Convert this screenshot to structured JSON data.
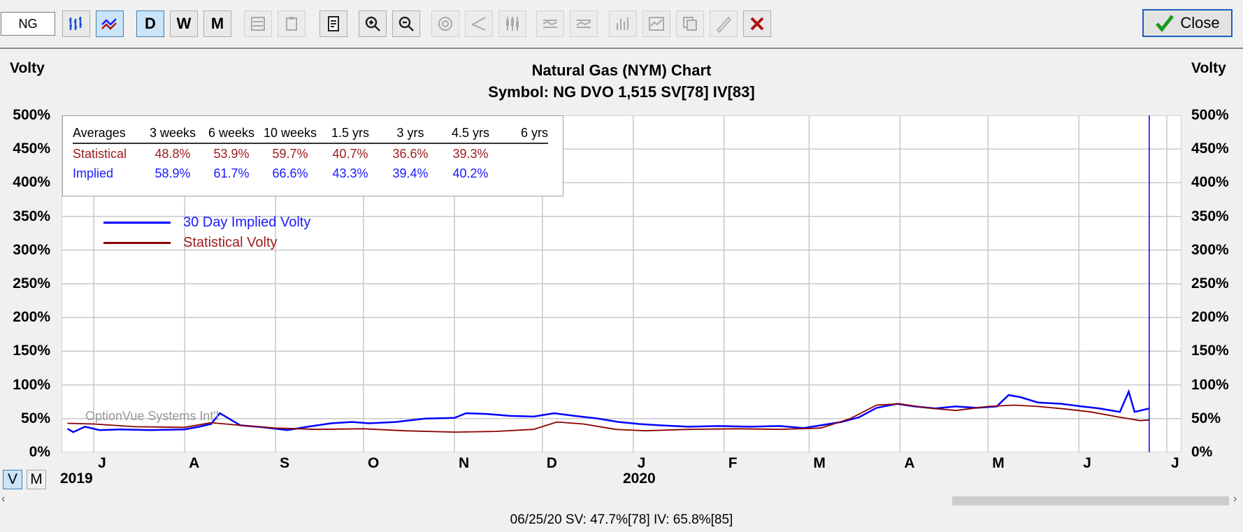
{
  "toolbar": {
    "symbol_value": "NG",
    "buttons": [
      {
        "name": "bar-chart-button",
        "label": "",
        "icon": "bar-chart-icon",
        "pressed": false,
        "disabled": false
      },
      {
        "name": "volatility-chart-button",
        "label": "",
        "icon": "volatility-chart-icon",
        "pressed": true,
        "disabled": false
      },
      {
        "name": "daily-button",
        "label": "D",
        "pressed": true,
        "disabled": false
      },
      {
        "name": "weekly-button",
        "label": "W",
        "pressed": false,
        "disabled": false
      },
      {
        "name": "monthly-button",
        "label": "M",
        "pressed": false,
        "disabled": false
      }
    ],
    "close_label": "Close"
  },
  "chart": {
    "title_line1": "Natural Gas (NYM) Chart",
    "title_line2": "Symbol: NG  DVO 1,515  SV[78]  IV[83]",
    "left_axis_title": "Volty",
    "right_axis_title": "Volty",
    "y_ticks": [
      "500%",
      "450%",
      "400%",
      "350%",
      "300%",
      "250%",
      "200%",
      "150%",
      "100%",
      "50%",
      "0%"
    ],
    "months": [
      "J",
      "A",
      "S",
      "O",
      "N",
      "D",
      "J",
      "F",
      "M",
      "A",
      "M",
      "J",
      "J"
    ],
    "years": [
      "2019",
      "2020"
    ],
    "view_buttons": [
      "V",
      "M"
    ],
    "watermark": "OptionVue Systems Int'l"
  },
  "averages": {
    "headers": [
      "Averages",
      "3 weeks",
      "6 weeks",
      "10 weeks",
      "1.5 yrs",
      "3 yrs",
      "4.5 yrs",
      "6 yrs"
    ],
    "rows": [
      {
        "label": "Statistical",
        "values": [
          "48.8%",
          "53.9%",
          "59.7%",
          "40.7%",
          "36.6%",
          "39.3%",
          ""
        ],
        "color": "#9b1b1b"
      },
      {
        "label": "Implied",
        "values": [
          "58.9%",
          "61.7%",
          "66.6%",
          "43.3%",
          "39.4%",
          "40.2%",
          ""
        ],
        "color": "#1a1aff"
      }
    ]
  },
  "legend": [
    {
      "label": "30 Day Implied Volty",
      "color": "#0000ff"
    },
    {
      "label": "Statistical Volty",
      "color": "#8b0000"
    }
  ],
  "status": "06/25/20   SV: 47.7%[78]   IV: 65.8%[85]",
  "chart_data": {
    "type": "line",
    "ylim": [
      0,
      500
    ],
    "x_range": [
      "2019-06-20",
      "2020-07-06"
    ],
    "cursor_date": "2020-06-25",
    "series": [
      {
        "name": "30 Day Implied Volty",
        "color": "#0000ff",
        "points": [
          [
            "2019-06-22",
            35
          ],
          [
            "2019-06-24",
            30
          ],
          [
            "2019-06-28",
            38
          ],
          [
            "2019-07-03",
            33
          ],
          [
            "2019-07-10",
            34
          ],
          [
            "2019-07-20",
            33
          ],
          [
            "2019-08-01",
            34
          ],
          [
            "2019-08-06",
            38
          ],
          [
            "2019-08-10",
            42
          ],
          [
            "2019-08-13",
            58
          ],
          [
            "2019-08-20",
            40
          ],
          [
            "2019-08-28",
            37
          ],
          [
            "2019-09-05",
            33
          ],
          [
            "2019-09-12",
            38
          ],
          [
            "2019-09-20",
            43
          ],
          [
            "2019-09-27",
            45
          ],
          [
            "2019-10-03",
            43
          ],
          [
            "2019-10-12",
            45
          ],
          [
            "2019-10-22",
            50
          ],
          [
            "2019-11-01",
            51
          ],
          [
            "2019-11-05",
            58
          ],
          [
            "2019-11-12",
            57
          ],
          [
            "2019-11-20",
            54
          ],
          [
            "2019-11-28",
            53
          ],
          [
            "2019-12-05",
            58
          ],
          [
            "2019-12-12",
            54
          ],
          [
            "2019-12-20",
            50
          ],
          [
            "2019-12-27",
            45
          ],
          [
            "2020-01-03",
            42
          ],
          [
            "2020-01-10",
            40
          ],
          [
            "2020-01-20",
            38
          ],
          [
            "2020-01-30",
            39
          ],
          [
            "2020-02-10",
            38
          ],
          [
            "2020-02-20",
            39
          ],
          [
            "2020-02-28",
            36
          ],
          [
            "2020-03-05",
            40
          ],
          [
            "2020-03-12",
            45
          ],
          [
            "2020-03-18",
            52
          ],
          [
            "2020-03-24",
            66
          ],
          [
            "2020-03-31",
            72
          ],
          [
            "2020-04-06",
            68
          ],
          [
            "2020-04-13",
            65
          ],
          [
            "2020-04-20",
            68
          ],
          [
            "2020-04-27",
            66
          ],
          [
            "2020-05-04",
            68
          ],
          [
            "2020-05-08",
            85
          ],
          [
            "2020-05-12",
            82
          ],
          [
            "2020-05-18",
            74
          ],
          [
            "2020-05-26",
            72
          ],
          [
            "2020-06-02",
            68
          ],
          [
            "2020-06-08",
            65
          ],
          [
            "2020-06-15",
            60
          ],
          [
            "2020-06-18",
            90
          ],
          [
            "2020-06-20",
            60
          ],
          [
            "2020-06-25",
            65
          ]
        ]
      },
      {
        "name": "Statistical Volty",
        "color": "#8b0000",
        "points": [
          [
            "2019-06-22",
            43
          ],
          [
            "2019-07-01",
            42
          ],
          [
            "2019-07-15",
            38
          ],
          [
            "2019-08-01",
            37
          ],
          [
            "2019-08-10",
            44
          ],
          [
            "2019-08-20",
            40
          ],
          [
            "2019-09-01",
            36
          ],
          [
            "2019-09-15",
            34
          ],
          [
            "2019-10-01",
            35
          ],
          [
            "2019-10-15",
            32
          ],
          [
            "2019-11-01",
            30
          ],
          [
            "2019-11-15",
            31
          ],
          [
            "2019-11-28",
            34
          ],
          [
            "2019-12-06",
            45
          ],
          [
            "2019-12-15",
            42
          ],
          [
            "2019-12-26",
            34
          ],
          [
            "2020-01-05",
            32
          ],
          [
            "2020-01-20",
            34
          ],
          [
            "2020-02-05",
            35
          ],
          [
            "2020-02-20",
            34
          ],
          [
            "2020-03-05",
            36
          ],
          [
            "2020-03-15",
            50
          ],
          [
            "2020-03-24",
            70
          ],
          [
            "2020-04-01",
            72
          ],
          [
            "2020-04-10",
            66
          ],
          [
            "2020-04-20",
            62
          ],
          [
            "2020-05-01",
            68
          ],
          [
            "2020-05-10",
            70
          ],
          [
            "2020-05-18",
            68
          ],
          [
            "2020-05-28",
            64
          ],
          [
            "2020-06-05",
            60
          ],
          [
            "2020-06-15",
            52
          ],
          [
            "2020-06-22",
            47
          ],
          [
            "2020-06-25",
            48
          ]
        ]
      }
    ]
  }
}
